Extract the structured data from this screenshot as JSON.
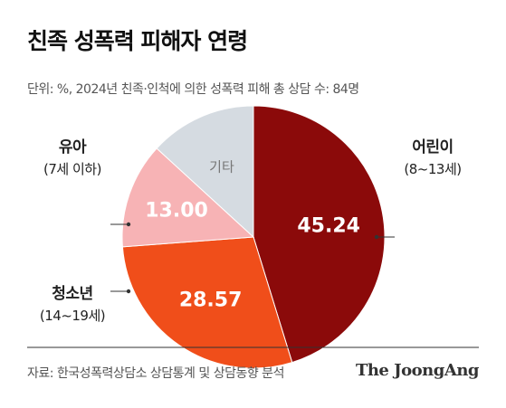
{
  "title": "친족 성폭력 피해자 연령",
  "subtitle": "단위: %, 2024년 친족·인척에 의한 성폭력 피해 총 상담 수: 84명",
  "source": "자료: 한국성폭력상담소 상담통계 및 상담동향 분석",
  "logo": "The JoongAng",
  "chart_data": {
    "type": "pie",
    "title": "친족 성폭력 피해자 연령",
    "unit": "%",
    "slices": [
      {
        "label": "어린이",
        "range": "(8~13세)",
        "value": 45.24,
        "value_label": "45.24",
        "color": "#8b0a0a"
      },
      {
        "label": "청소년",
        "range": "(14~19세)",
        "value": 28.57,
        "value_label": "28.57",
        "color": "#f04e1a"
      },
      {
        "label": "유아",
        "range": "(7세 이하)",
        "value": 13.0,
        "value_label": "13.00",
        "color": "#f7b3b5"
      },
      {
        "label": "기타",
        "range": "",
        "value": 13.19,
        "value_label": "기타",
        "color": "#d5dbe1"
      }
    ]
  }
}
